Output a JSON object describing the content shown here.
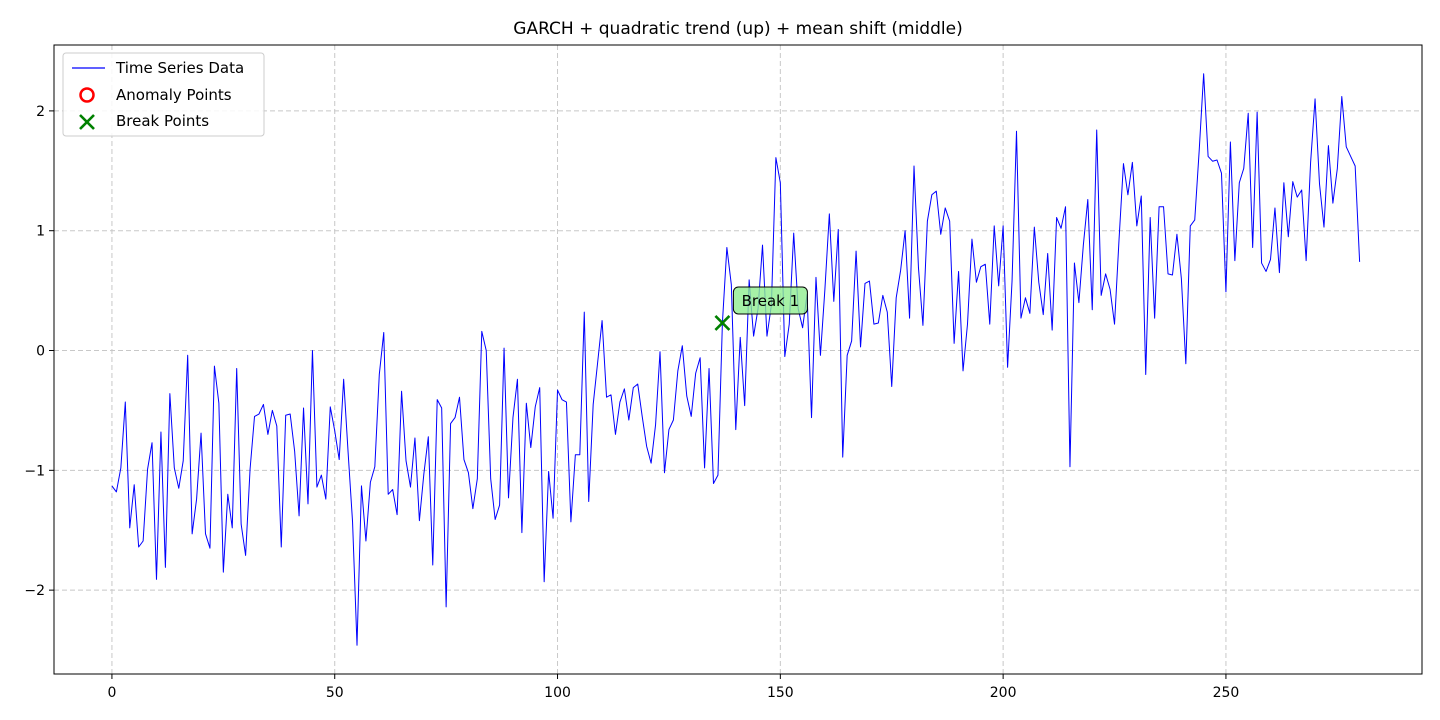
{
  "chart_data": {
    "type": "line",
    "title": "GARCH + quadratic trend (up) + mean shift (middle)",
    "xlabel": "",
    "ylabel": "",
    "xlim": [
      -13,
      294
    ],
    "ylim": [
      -2.7,
      2.55
    ],
    "xticks": [
      0,
      50,
      100,
      150,
      200,
      250
    ],
    "yticks": [
      -2,
      -1,
      0,
      1,
      2
    ],
    "grid": true,
    "legend_position": "top-left",
    "legend": [
      {
        "label": "Time Series Data",
        "kind": "line",
        "color": "#0000ff"
      },
      {
        "label": "Anomaly Points",
        "kind": "circle",
        "color": "#ff0000"
      },
      {
        "label": "Break Points",
        "kind": "x",
        "color": "#008000"
      }
    ],
    "series": [
      {
        "name": "Time Series Data",
        "color": "#0000ff",
        "x_start": 0,
        "values": [
          -1.13,
          -1.18,
          -0.98,
          -0.43,
          -1.48,
          -1.12,
          -1.64,
          -1.59,
          -0.99,
          -0.77,
          -1.91,
          -0.68,
          -1.81,
          -0.36,
          -0.98,
          -1.15,
          -0.92,
          -0.04,
          -1.53,
          -1.24,
          -0.69,
          -1.53,
          -1.65,
          -0.13,
          -0.44,
          -1.85,
          -1.2,
          -1.48,
          -0.15,
          -1.45,
          -1.71,
          -0.99,
          -0.55,
          -0.53,
          -0.45,
          -0.7,
          -0.5,
          -0.63,
          -1.64,
          -0.54,
          -0.53,
          -0.84,
          -1.38,
          -0.48,
          -1.28,
          0.0,
          -1.14,
          -1.04,
          -1.24,
          -0.47,
          -0.67,
          -0.91,
          -0.24,
          -0.85,
          -1.43,
          -2.46,
          -1.13,
          -1.59,
          -1.1,
          -0.97,
          -0.2,
          0.15,
          -1.2,
          -1.16,
          -1.37,
          -0.34,
          -0.92,
          -1.14,
          -0.73,
          -1.42,
          -1.03,
          -0.72,
          -1.79,
          -0.41,
          -0.48,
          -2.14,
          -0.61,
          -0.56,
          -0.39,
          -0.91,
          -1.02,
          -1.32,
          -1.07,
          0.16,
          0.0,
          -1.07,
          -1.41,
          -1.29,
          0.02,
          -1.23,
          -0.56,
          -0.24,
          -1.52,
          -0.44,
          -0.81,
          -0.47,
          -0.31,
          -1.93,
          -1.01,
          -1.4,
          -0.33,
          -0.41,
          -0.43,
          -1.43,
          -0.87,
          -0.87,
          0.32,
          -1.26,
          -0.45,
          -0.1,
          0.25,
          -0.39,
          -0.37,
          -0.7,
          -0.43,
          -0.32,
          -0.58,
          -0.31,
          -0.28,
          -0.55,
          -0.8,
          -0.94,
          -0.62,
          -0.01,
          -1.02,
          -0.66,
          -0.58,
          -0.17,
          0.04,
          -0.38,
          -0.55,
          -0.19,
          -0.06,
          -0.98,
          -0.15,
          -1.11,
          -1.04,
          0.23,
          0.86,
          0.55,
          -0.66,
          0.11,
          -0.46,
          0.59,
          0.12,
          0.35,
          0.88,
          0.12,
          0.38,
          1.61,
          1.4,
          -0.05,
          0.22,
          0.98,
          0.35,
          0.19,
          0.47,
          -0.56,
          0.61,
          -0.04,
          0.51,
          1.14,
          0.41,
          1.01,
          -0.89,
          -0.04,
          0.08,
          0.83,
          0.03,
          0.56,
          0.58,
          0.22,
          0.23,
          0.46,
          0.32,
          -0.3,
          0.44,
          0.67,
          1.0,
          0.27,
          1.54,
          0.69,
          0.21,
          1.08,
          1.3,
          1.33,
          0.97,
          1.19,
          1.08,
          0.06,
          0.66,
          -0.17,
          0.22,
          0.93,
          0.57,
          0.7,
          0.72,
          0.22,
          1.04,
          0.54,
          1.04,
          -0.14,
          0.58,
          1.83,
          0.27,
          0.44,
          0.31,
          1.03,
          0.57,
          0.3,
          0.81,
          0.17,
          1.11,
          1.02,
          1.2,
          -0.97,
          0.73,
          0.4,
          0.88,
          1.26,
          0.34,
          1.84,
          0.46,
          0.64,
          0.51,
          0.22,
          0.92,
          1.56,
          1.3,
          1.57,
          1.04,
          1.29,
          -0.2,
          1.11,
          0.27,
          1.2,
          1.2,
          0.64,
          0.63,
          0.97,
          0.6,
          -0.11,
          1.04,
          1.09,
          1.67,
          2.31,
          1.62,
          1.58,
          1.59,
          1.48,
          0.49,
          1.74,
          0.75,
          1.4,
          1.52,
          1.98,
          0.86,
          1.99,
          0.73,
          0.66,
          0.76,
          1.19,
          0.65,
          1.4,
          0.95,
          1.41,
          1.28,
          1.34,
          0.75,
          1.57,
          2.1,
          1.39,
          1.03,
          1.71,
          1.23,
          1.52,
          2.12,
          1.7,
          1.62,
          1.54,
          0.74
        ]
      }
    ],
    "anomalies": [],
    "break_points": [
      {
        "x": 137,
        "y": 0.23,
        "label": "Break 1"
      }
    ]
  }
}
